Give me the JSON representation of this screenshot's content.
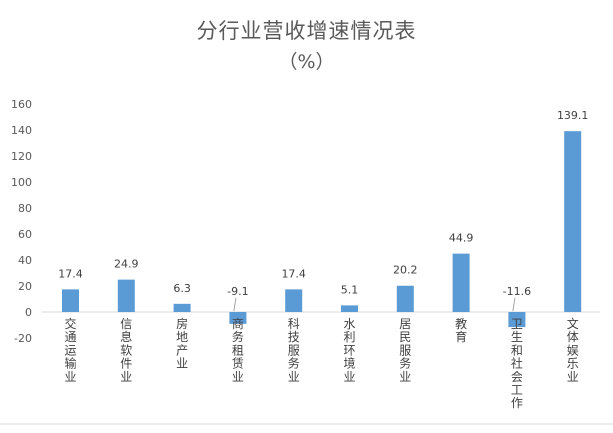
{
  "chart_data": {
    "type": "bar",
    "title": "分行业营收增速情况表",
    "subtitle": "（%）",
    "categories": [
      "交通运输业",
      "信息软件业",
      "房地产业",
      "商务租赁业",
      "科技服务业",
      "水利环境业",
      "居民服务业",
      "教育",
      "卫生和社会工作",
      "文体娱乐业"
    ],
    "values": [
      17.4,
      24.9,
      6.3,
      -9.1,
      17.4,
      5.1,
      20.2,
      44.9,
      -11.6,
      139.1
    ],
    "data_labels": [
      "17.4",
      "24.9",
      "6.3",
      "-9.1",
      "17.4",
      "5.1",
      "20.2",
      "44.9",
      "-11.6",
      "139.1"
    ],
    "ylim": [
      -20,
      160
    ],
    "yticks": [
      -20,
      0,
      20,
      40,
      60,
      80,
      100,
      120,
      140,
      160
    ],
    "xlabel": "",
    "ylabel": "",
    "grid": false,
    "legend": "none",
    "bar_color": "#5B9BD5",
    "axis_color": "#D9D9D9"
  }
}
